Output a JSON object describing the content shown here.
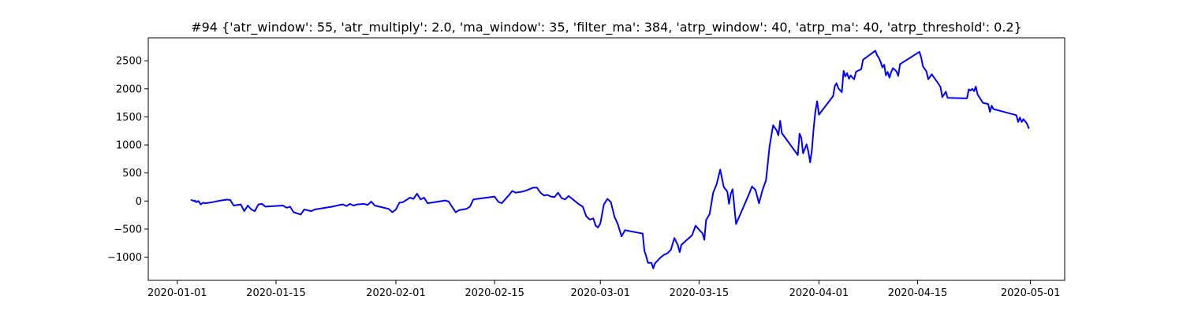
{
  "chart_data": {
    "type": "line",
    "title": "#94 {'atr_window': 55, 'atr_multiply': 2.0, 'ma_window': 35, 'filter_ma': 384, 'atrp_window': 40, 'atrp_ma': 40, 'atrp_threshold': 0.2}",
    "xlabel": "",
    "ylabel": "",
    "x_type": "date",
    "xlim": [
      "2020-01-01",
      "2020-05-01"
    ],
    "ylim": [
      -1000,
      2500
    ],
    "xticks": [
      "2020-01-01",
      "2020-01-15",
      "2020-02-01",
      "2020-02-15",
      "2020-03-01",
      "2020-03-15",
      "2020-04-01",
      "2020-04-15",
      "2020-05-01"
    ],
    "yticks": [
      -1000,
      -500,
      0,
      500,
      1000,
      1500,
      2000,
      2500
    ],
    "grid": false,
    "legend": false,
    "series": [
      {
        "color": "#0000ff",
        "points": [
          [
            "2020-01-03 00:00",
            20
          ],
          [
            "2020-01-03 08:00",
            0
          ],
          [
            "2020-01-03 12:00",
            10
          ],
          [
            "2020-01-03 16:00",
            -20
          ],
          [
            "2020-01-04 00:00",
            0
          ],
          [
            "2020-01-04 08:00",
            -60
          ],
          [
            "2020-01-04 16:00",
            -30
          ],
          [
            "2020-01-05 00:00",
            -40
          ],
          [
            "2020-01-06 00:00",
            -20
          ],
          [
            "2020-01-07 00:00",
            5
          ],
          [
            "2020-01-08 00:00",
            25
          ],
          [
            "2020-01-08 12:00",
            20
          ],
          [
            "2020-01-09 00:00",
            -80
          ],
          [
            "2020-01-10 00:00",
            -60
          ],
          [
            "2020-01-10 12:00",
            -180
          ],
          [
            "2020-01-11 00:00",
            -80
          ],
          [
            "2020-01-11 12:00",
            -150
          ],
          [
            "2020-01-12 00:00",
            -180
          ],
          [
            "2020-01-12 12:00",
            -60
          ],
          [
            "2020-01-13 00:00",
            -50
          ],
          [
            "2020-01-13 12:00",
            -100
          ],
          [
            "2020-01-16 00:00",
            -80
          ],
          [
            "2020-01-16 12:00",
            -120
          ],
          [
            "2020-01-17 00:00",
            -100
          ],
          [
            "2020-01-17 12:00",
            -200
          ],
          [
            "2020-01-18 12:00",
            -240
          ],
          [
            "2020-01-19 00:00",
            -150
          ],
          [
            "2020-01-20 00:00",
            -180
          ],
          [
            "2020-01-20 12:00",
            -150
          ],
          [
            "2020-01-23 00:00",
            -100
          ],
          [
            "2020-01-24 00:00",
            -70
          ],
          [
            "2020-01-24 12:00",
            -60
          ],
          [
            "2020-01-25 00:00",
            -90
          ],
          [
            "2020-01-25 12:00",
            -50
          ],
          [
            "2020-01-26 00:00",
            -80
          ],
          [
            "2020-01-26 12:00",
            -60
          ],
          [
            "2020-01-27 12:00",
            -50
          ],
          [
            "2020-01-28 00:00",
            -70
          ],
          [
            "2020-01-28 12:00",
            -10
          ],
          [
            "2020-01-29 00:00",
            -80
          ],
          [
            "2020-01-30 00:00",
            -110
          ],
          [
            "2020-01-31 00:00",
            -140
          ],
          [
            "2020-01-31 12:00",
            -200
          ],
          [
            "2020-02-01 00:00",
            -150
          ],
          [
            "2020-02-01 12:00",
            -30
          ],
          [
            "2020-02-02 00:00",
            -20
          ],
          [
            "2020-02-02 12:00",
            20
          ],
          [
            "2020-02-03 00:00",
            60
          ],
          [
            "2020-02-03 12:00",
            40
          ],
          [
            "2020-02-04 00:00",
            130
          ],
          [
            "2020-02-04 12:00",
            30
          ],
          [
            "2020-02-05 00:00",
            60
          ],
          [
            "2020-02-05 12:00",
            -40
          ],
          [
            "2020-02-08 00:00",
            10
          ],
          [
            "2020-02-08 12:00",
            -10
          ],
          [
            "2020-02-09 00:00",
            -110
          ],
          [
            "2020-02-09 12:00",
            -200
          ],
          [
            "2020-02-10 00:00",
            -160
          ],
          [
            "2020-02-11 00:00",
            -140
          ],
          [
            "2020-02-11 12:00",
            -100
          ],
          [
            "2020-02-12 00:00",
            30
          ],
          [
            "2020-02-15 00:00",
            80
          ],
          [
            "2020-02-15 12:00",
            -10
          ],
          [
            "2020-02-16 00:00",
            -40
          ],
          [
            "2020-02-16 12:00",
            30
          ],
          [
            "2020-02-17 00:00",
            100
          ],
          [
            "2020-02-17 12:00",
            180
          ],
          [
            "2020-02-18 00:00",
            150
          ],
          [
            "2020-02-19 00:00",
            170
          ],
          [
            "2020-02-19 12:00",
            190
          ],
          [
            "2020-02-20 12:00",
            240
          ],
          [
            "2020-02-21 00:00",
            240
          ],
          [
            "2020-02-21 12:00",
            150
          ],
          [
            "2020-02-22 00:00",
            100
          ],
          [
            "2020-02-22 12:00",
            110
          ],
          [
            "2020-02-23 00:00",
            80
          ],
          [
            "2020-02-23 12:00",
            70
          ],
          [
            "2020-02-24 00:00",
            150
          ],
          [
            "2020-02-24 12:00",
            50
          ],
          [
            "2020-02-25 00:00",
            30
          ],
          [
            "2020-02-25 12:00",
            90
          ],
          [
            "2020-02-27 00:00",
            -60
          ],
          [
            "2020-02-27 12:00",
            -100
          ],
          [
            "2020-02-28 00:00",
            -270
          ],
          [
            "2020-02-28 12:00",
            -330
          ],
          [
            "2020-02-29 00:00",
            -310
          ],
          [
            "2020-02-29 08:00",
            -440
          ],
          [
            "2020-02-29 16:00",
            -470
          ],
          [
            "2020-03-01 00:00",
            -400
          ],
          [
            "2020-03-01 12:00",
            -60
          ],
          [
            "2020-03-02 00:00",
            40
          ],
          [
            "2020-03-02 12:00",
            -20
          ],
          [
            "2020-03-03 00:00",
            -280
          ],
          [
            "2020-03-03 12:00",
            -420
          ],
          [
            "2020-03-04 00:00",
            -630
          ],
          [
            "2020-03-04 12:00",
            -520
          ],
          [
            "2020-03-07 00:00",
            -580
          ],
          [
            "2020-03-07 06:00",
            -890
          ],
          [
            "2020-03-07 12:00",
            -980
          ],
          [
            "2020-03-07 18:00",
            -1100
          ],
          [
            "2020-03-08 06:00",
            -1100
          ],
          [
            "2020-03-08 12:00",
            -1200
          ],
          [
            "2020-03-08 18:00",
            -1110
          ],
          [
            "2020-03-09 12:00",
            -1010
          ],
          [
            "2020-03-10 00:00",
            -960
          ],
          [
            "2020-03-10 12:00",
            -930
          ],
          [
            "2020-03-11 00:00",
            -870
          ],
          [
            "2020-03-11 12:00",
            -660
          ],
          [
            "2020-03-12 00:00",
            -790
          ],
          [
            "2020-03-12 06:00",
            -910
          ],
          [
            "2020-03-12 12:00",
            -780
          ],
          [
            "2020-03-14 00:00",
            -610
          ],
          [
            "2020-03-14 12:00",
            -440
          ],
          [
            "2020-03-15 12:00",
            -580
          ],
          [
            "2020-03-15 18:00",
            -690
          ],
          [
            "2020-03-16 00:00",
            -340
          ],
          [
            "2020-03-16 12:00",
            -230
          ],
          [
            "2020-03-17 00:00",
            150
          ],
          [
            "2020-03-17 12:00",
            300
          ],
          [
            "2020-03-18 00:00",
            560
          ],
          [
            "2020-03-18 12:00",
            250
          ],
          [
            "2020-03-19 00:00",
            170
          ],
          [
            "2020-03-19 06:00",
            -50
          ],
          [
            "2020-03-19 12:00",
            130
          ],
          [
            "2020-03-19 18:00",
            210
          ],
          [
            "2020-03-20 06:00",
            -410
          ],
          [
            "2020-03-22 00:00",
            100
          ],
          [
            "2020-03-22 12:00",
            260
          ],
          [
            "2020-03-23 00:00",
            200
          ],
          [
            "2020-03-23 12:00",
            -40
          ],
          [
            "2020-03-24 00:00",
            200
          ],
          [
            "2020-03-24 12:00",
            370
          ],
          [
            "2020-03-25 00:00",
            980
          ],
          [
            "2020-03-25 12:00",
            1350
          ],
          [
            "2020-03-26 00:00",
            1260
          ],
          [
            "2020-03-26 06:00",
            1170
          ],
          [
            "2020-03-26 12:00",
            1430
          ],
          [
            "2020-03-26 18:00",
            1210
          ],
          [
            "2020-03-29 00:00",
            820
          ],
          [
            "2020-03-29 06:00",
            1200
          ],
          [
            "2020-03-29 12:00",
            1130
          ],
          [
            "2020-03-29 18:00",
            850
          ],
          [
            "2020-03-30 06:00",
            1010
          ],
          [
            "2020-03-30 12:00",
            880
          ],
          [
            "2020-03-30 18:00",
            690
          ],
          [
            "2020-03-31 00:00",
            900
          ],
          [
            "2020-03-31 06:00",
            1300
          ],
          [
            "2020-03-31 12:00",
            1600
          ],
          [
            "2020-03-31 18:00",
            1780
          ],
          [
            "2020-04-01 00:00",
            1540
          ],
          [
            "2020-04-03 00:00",
            1870
          ],
          [
            "2020-04-03 06:00",
            2050
          ],
          [
            "2020-04-03 12:00",
            2100
          ],
          [
            "2020-04-03 18:00",
            2010
          ],
          [
            "2020-04-04 06:00",
            1940
          ],
          [
            "2020-04-04 12:00",
            2320
          ],
          [
            "2020-04-04 18:00",
            2220
          ],
          [
            "2020-04-05 00:00",
            2280
          ],
          [
            "2020-04-05 06:00",
            2180
          ],
          [
            "2020-04-05 12:00",
            2240
          ],
          [
            "2020-04-05 18:00",
            2200
          ],
          [
            "2020-04-06 00:00",
            2170
          ],
          [
            "2020-04-06 06:00",
            2300
          ],
          [
            "2020-04-06 12:00",
            2320
          ],
          [
            "2020-04-07 00:00",
            2350
          ],
          [
            "2020-04-07 06:00",
            2520
          ],
          [
            "2020-04-09 00:00",
            2680
          ],
          [
            "2020-04-09 06:00",
            2600
          ],
          [
            "2020-04-09 12:00",
            2550
          ],
          [
            "2020-04-09 18:00",
            2480
          ],
          [
            "2020-04-10 00:00",
            2380
          ],
          [
            "2020-04-10 06:00",
            2430
          ],
          [
            "2020-04-10 12:00",
            2240
          ],
          [
            "2020-04-10 18:00",
            2300
          ],
          [
            "2020-04-11 00:00",
            2200
          ],
          [
            "2020-04-11 06:00",
            2300
          ],
          [
            "2020-04-11 12:00",
            2370
          ],
          [
            "2020-04-12 00:00",
            2310
          ],
          [
            "2020-04-12 06:00",
            2230
          ],
          [
            "2020-04-12 12:00",
            2440
          ],
          [
            "2020-04-15 06:00",
            2660
          ],
          [
            "2020-04-15 12:00",
            2560
          ],
          [
            "2020-04-15 18:00",
            2400
          ],
          [
            "2020-04-16 06:00",
            2310
          ],
          [
            "2020-04-16 12:00",
            2170
          ],
          [
            "2020-04-17 00:00",
            2260
          ],
          [
            "2020-04-18 00:00",
            2080
          ],
          [
            "2020-04-18 06:00",
            2030
          ],
          [
            "2020-04-18 12:00",
            1850
          ],
          [
            "2020-04-19 00:00",
            1950
          ],
          [
            "2020-04-19 06:00",
            1840
          ],
          [
            "2020-04-22 00:00",
            1830
          ],
          [
            "2020-04-22 06:00",
            1990
          ],
          [
            "2020-04-22 12:00",
            1970
          ],
          [
            "2020-04-22 18:00",
            2000
          ],
          [
            "2020-04-23 00:00",
            1960
          ],
          [
            "2020-04-23 06:00",
            2040
          ],
          [
            "2020-04-23 12:00",
            1900
          ],
          [
            "2020-04-24 06:00",
            1750
          ],
          [
            "2020-04-25 00:00",
            1730
          ],
          [
            "2020-04-25 06:00",
            1590
          ],
          [
            "2020-04-25 12:00",
            1700
          ],
          [
            "2020-04-25 18:00",
            1640
          ],
          [
            "2020-04-29 00:00",
            1530
          ],
          [
            "2020-04-29 06:00",
            1410
          ],
          [
            "2020-04-29 12:00",
            1490
          ],
          [
            "2020-04-29 18:00",
            1410
          ],
          [
            "2020-04-30 00:00",
            1460
          ],
          [
            "2020-04-30 12:00",
            1380
          ],
          [
            "2020-04-30 18:00",
            1300
          ]
        ]
      }
    ]
  }
}
